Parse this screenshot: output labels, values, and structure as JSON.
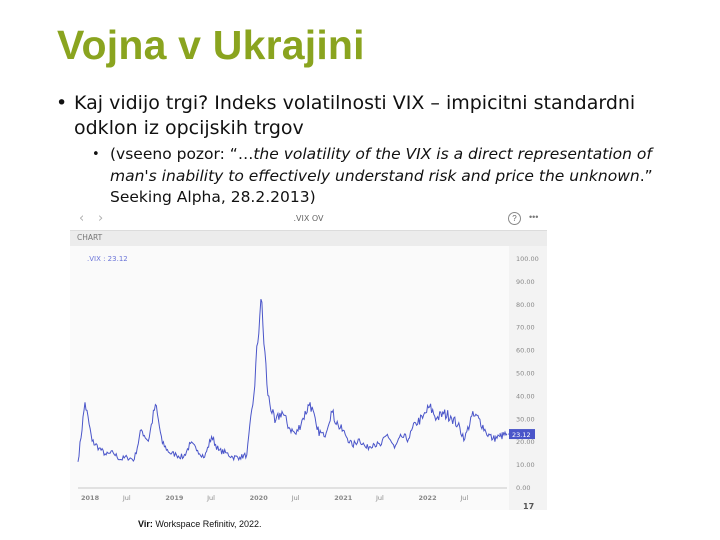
{
  "slide": {
    "title": "Vojna v Ukrajini",
    "bullet1": "Kaj vidijo trgi? Indeks volatilnosti VIX – impicitni standardni odklon iz opcijskih trgov",
    "bullet2_open": "(vseeno pozor: “…",
    "bullet2_quote": "the volatility of the VIX is a direct representation of man's inability to effectively understand risk and price the unknown",
    "bullet2_close": ".” Seeking Alpha, 28.2.2013)",
    "source_label": "Vir:",
    "source_text": " Workspace Refinitiv, 2022."
  },
  "chart_window": {
    "ric": ".VIX OV",
    "header": "CHART",
    "legend": ".VIX : 23.12",
    "last_value_label": "23.12",
    "back_icon": "chevron-left-icon",
    "forward_icon": "chevron-right-icon",
    "help_glyph": "?",
    "more_glyph": "•••",
    "logo_glyph": "17"
  },
  "chart_data": {
    "type": "line",
    "title": "",
    "xlabel": "",
    "ylabel": "",
    "series": [
      {
        "name": ".VIX",
        "color": "#4a55c9",
        "x": [
          "2018-01",
          "2018-02",
          "2018-03",
          "2018-04",
          "2018-05",
          "2018-06",
          "2018-07",
          "2018-08",
          "2018-09",
          "2018-10",
          "2018-11",
          "2018-12",
          "2019-01",
          "2019-02",
          "2019-03",
          "2019-04",
          "2019-05",
          "2019-06",
          "2019-07",
          "2019-08",
          "2019-09",
          "2019-10",
          "2019-11",
          "2019-12",
          "2020-01",
          "2020-02",
          "2020-03",
          "2020-04",
          "2020-05",
          "2020-06",
          "2020-07",
          "2020-08",
          "2020-09",
          "2020-10",
          "2020-11",
          "2020-12",
          "2021-01",
          "2021-02",
          "2021-03",
          "2021-04",
          "2021-05",
          "2021-06",
          "2021-07",
          "2021-08",
          "2021-09",
          "2021-10",
          "2021-11",
          "2021-12",
          "2022-01",
          "2022-02",
          "2022-03",
          "2022-04",
          "2022-05",
          "2022-06",
          "2022-07",
          "2022-08",
          "2022-09",
          "2022-10",
          "2022-11",
          "2022-12",
          "2023-01",
          "2023-02"
        ],
        "values": [
          11,
          37,
          20,
          17,
          14,
          15,
          12,
          13,
          12,
          25,
          20,
          36,
          19,
          15,
          14,
          13,
          19,
          16,
          13,
          22,
          16,
          15,
          13,
          13,
          14,
          40,
          82,
          40,
          28,
          33,
          26,
          23,
          30,
          37,
          25,
          22,
          33,
          27,
          23,
          18,
          21,
          17,
          19,
          18,
          23,
          17,
          22,
          21,
          28,
          30,
          35,
          30,
          32,
          31,
          27,
          21,
          31,
          30,
          24,
          21,
          22,
          23.12
        ]
      }
    ],
    "ylim": [
      0,
      100
    ],
    "yticks": [
      "100.00",
      "90.00",
      "80.00",
      "70.00",
      "60.00",
      "50.00",
      "40.00",
      "30.00",
      "20.00",
      "10.00",
      "0.00"
    ],
    "xticks": [
      "2018",
      "Jul",
      "2019",
      "Jul",
      "2020",
      "Jul",
      "2021",
      "Jul",
      "2022",
      "Jul"
    ],
    "grid": false,
    "legend_position": "top-left"
  }
}
